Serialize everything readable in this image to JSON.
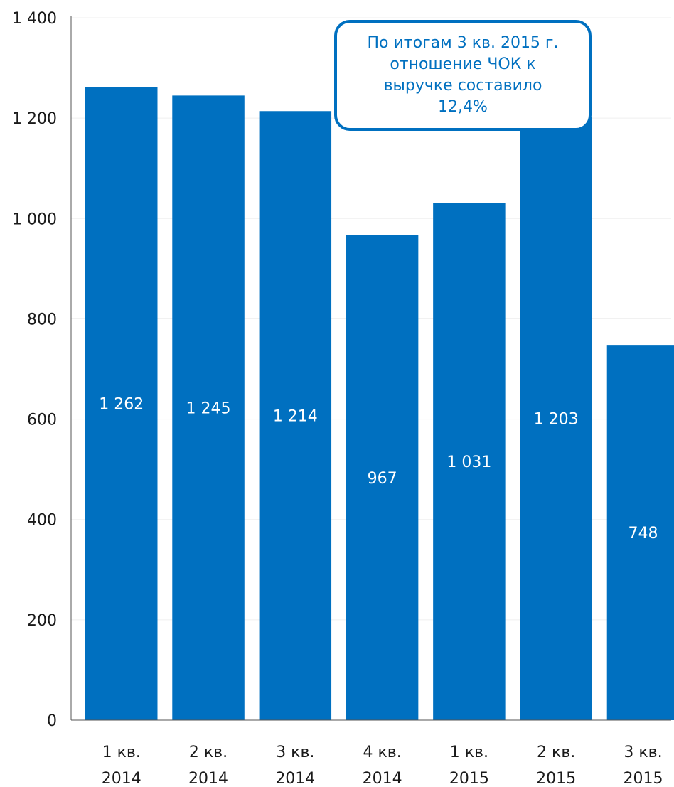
{
  "chart_data": {
    "type": "bar",
    "categories": [
      "1 кв.\n2014",
      "2 кв.\n2014",
      "3 кв.\n2014",
      "4 кв.\n2014",
      "1 кв.\n2015",
      "2 кв.\n2015",
      "3 кв.\n2015"
    ],
    "values": [
      1262,
      1245,
      1214,
      967,
      1031,
      1203,
      748
    ],
    "data_labels": [
      "1 262",
      "1 245",
      "1 214",
      "967",
      "1 031",
      "1 203",
      "748"
    ],
    "ylim": [
      0,
      1400
    ],
    "y_ticks": [
      0,
      200,
      400,
      600,
      800,
      1000,
      1200,
      1400
    ],
    "y_tick_labels": [
      "0",
      "200",
      "400",
      "600",
      "800",
      "1 000",
      "1 200",
      "1 400"
    ],
    "grid": true,
    "bar_color": "#0070c0",
    "title": "",
    "xlabel": "",
    "ylabel": "",
    "annotation": "По итогам 3 кв. 2015 г.\nотношение ЧОК к\nвыручке составило\n12,4%"
  }
}
